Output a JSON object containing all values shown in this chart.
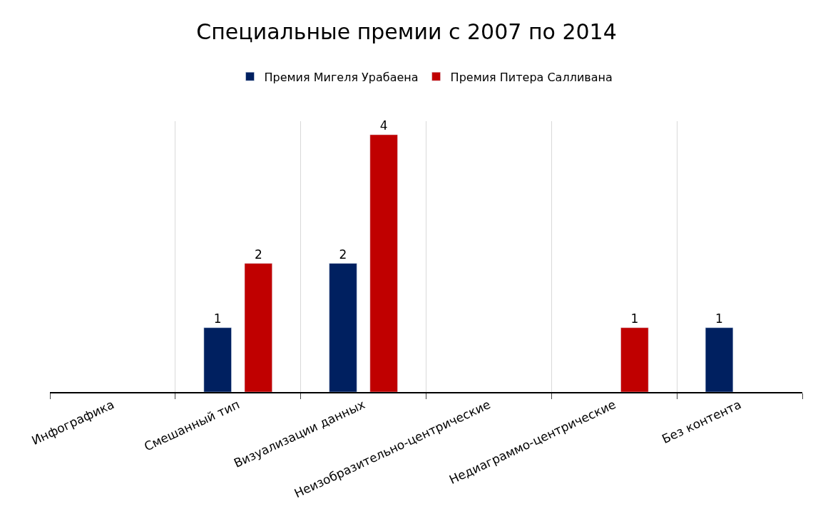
{
  "chart_data": {
    "type": "bar",
    "title": "Специальные премии с 2007 по 2014",
    "categories": [
      "Инфографика",
      "Смешанный тип",
      "Визуализации данных",
      "Неизобразительно-центрические",
      "Недиаграммо-центрические",
      "Без контента"
    ],
    "series": [
      {
        "name": "Премия Мигеля Урабаена",
        "color": "#002060",
        "values": [
          null,
          1,
          2,
          null,
          null,
          1
        ],
        "value_labels": [
          null,
          "1",
          "2",
          null,
          null,
          "1"
        ]
      },
      {
        "name": "Премия Питера Салливана",
        "color": "#c00000",
        "values": [
          null,
          2,
          4,
          null,
          1,
          null
        ],
        "value_labels": [
          null,
          "2",
          "4",
          null,
          "1",
          null
        ]
      }
    ],
    "grid": "x",
    "legend": "top"
  }
}
